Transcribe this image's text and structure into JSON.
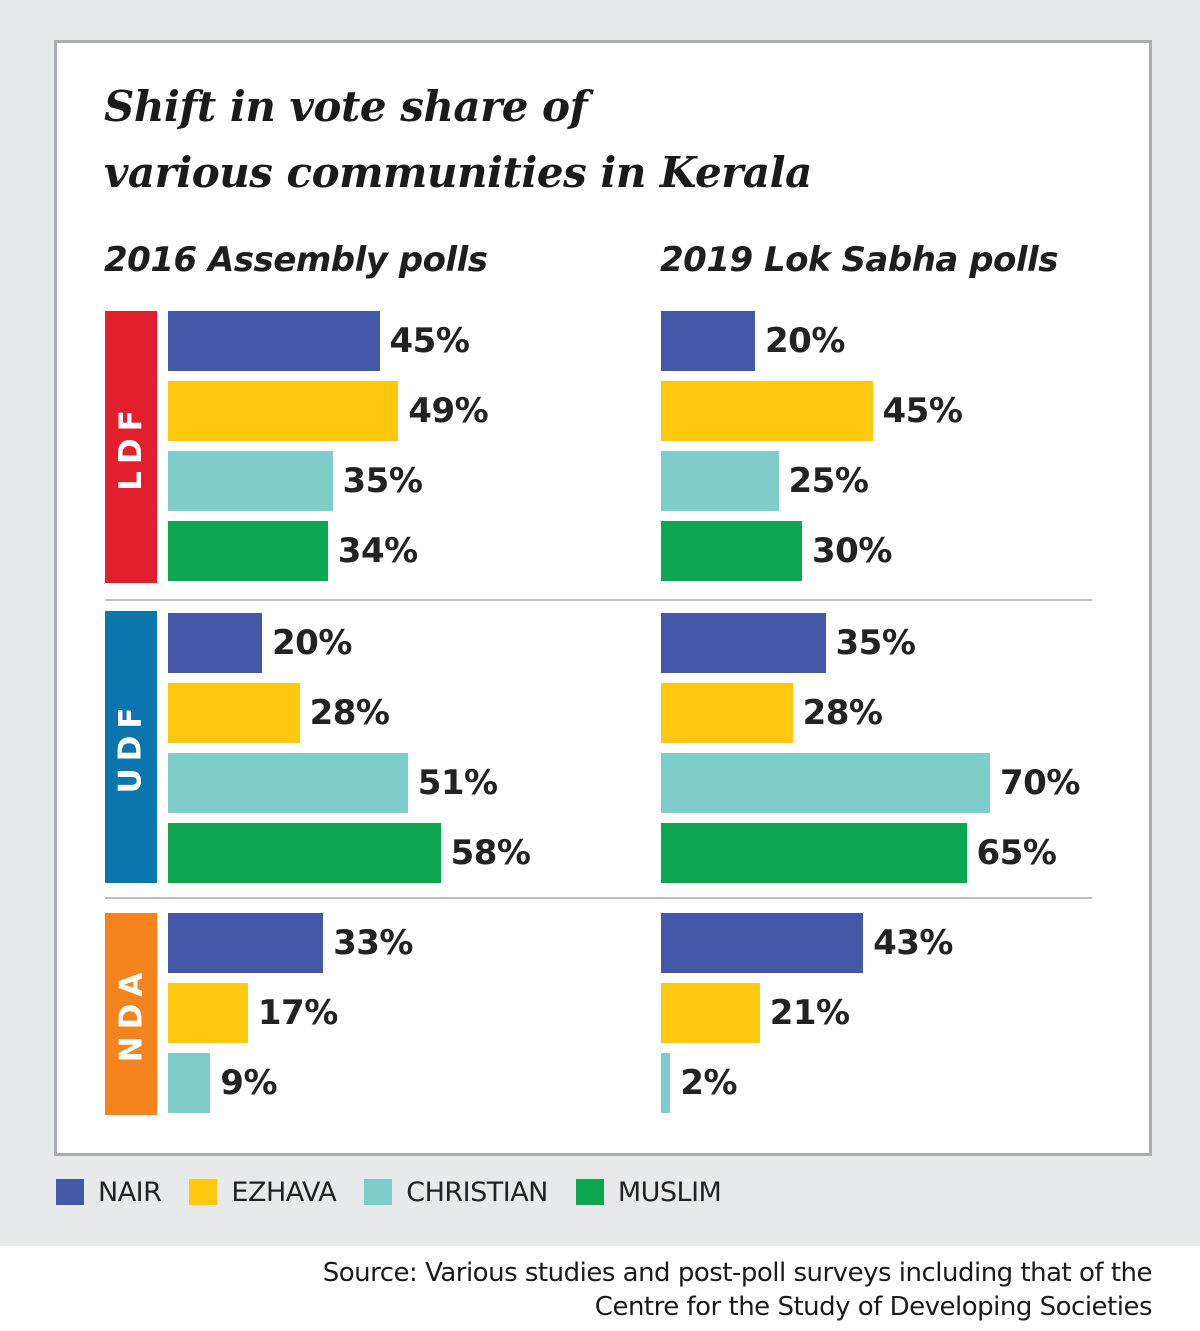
{
  "chart_data": {
    "type": "bar",
    "orientation": "horizontal",
    "title": "Shift in vote share of various communities in Kerala",
    "title_lines": [
      "Shift in vote share of",
      "various communities in Kerala"
    ],
    "panels": [
      {
        "label": "2016 Assembly polls"
      },
      {
        "label": "2019 Lok Sabha polls"
      }
    ],
    "parties": [
      {
        "name": "LDF",
        "color": "#e31e2d"
      },
      {
        "name": "UDF",
        "color": "#0a76ad"
      },
      {
        "name": "NDA",
        "color": "#f5841f"
      }
    ],
    "communities": [
      {
        "name": "NAIR",
        "color": "#4558a8"
      },
      {
        "name": "EZHAVA",
        "color": "#fec80f"
      },
      {
        "name": "CHRISTIAN",
        "color": "#7fcdc9"
      },
      {
        "name": "MUSLIM",
        "color": "#0ca650"
      }
    ],
    "values": {
      "2016 Assembly polls": {
        "LDF": [
          45,
          49,
          35,
          34
        ],
        "UDF": [
          20,
          28,
          51,
          58
        ],
        "NDA": [
          33,
          17,
          9
        ]
      },
      "2019 Lok Sabha polls": {
        "LDF": [
          20,
          45,
          25,
          30
        ],
        "UDF": [
          35,
          28,
          70,
          65
        ],
        "NDA": [
          43,
          21,
          2
        ]
      }
    },
    "unit": "%",
    "source_lines": [
      "Source: Various studies and post-poll surveys including that of the",
      "Centre for the Study of Developing Societies"
    ]
  }
}
